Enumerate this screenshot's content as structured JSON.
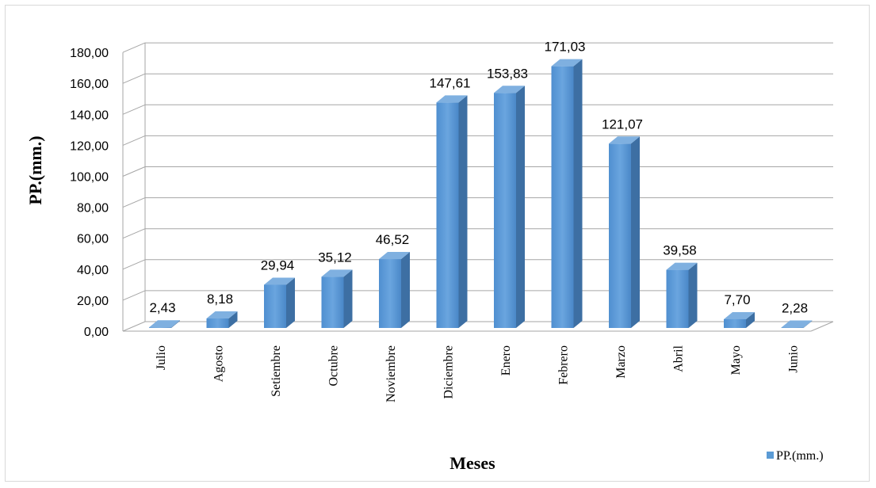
{
  "chart_data": {
    "type": "bar",
    "style": "3d-column",
    "categories": [
      "Julio",
      "Agosto",
      "Setiembre",
      "Octubre",
      "Noviembre",
      "Diciembre",
      "Enero",
      "Febrero",
      "Marzo",
      "Abril",
      "Mayo",
      "Junio"
    ],
    "values": [
      2.43,
      8.18,
      29.94,
      35.12,
      46.52,
      147.61,
      153.83,
      171.03,
      121.07,
      39.58,
      7.7,
      2.28
    ],
    "value_labels": [
      "2,43",
      "8,18",
      "29,94",
      "35,12",
      "46,52",
      "147,61",
      "153,83",
      "171,03",
      "121,07",
      "39,58",
      "7,70",
      "2,28"
    ],
    "series_name": "PP.(mm.)",
    "xlabel": "Meses",
    "ylabel": "PP.(mm.)",
    "ylim": [
      0,
      180
    ],
    "yticks": [
      0,
      20,
      40,
      60,
      80,
      100,
      120,
      140,
      160,
      180
    ],
    "ytick_labels": [
      "0,00",
      "20,00",
      "40,00",
      "60,00",
      "80,00",
      "100,00",
      "120,00",
      "140,00",
      "160,00",
      "180,00"
    ],
    "grid": true,
    "legend_position": "bottom-right",
    "colors": {
      "bar": "#5b9bd5",
      "bar_side": "#3d6fa3",
      "bar_top": "#7fb0e0",
      "grid": "#a6a6a6"
    }
  }
}
